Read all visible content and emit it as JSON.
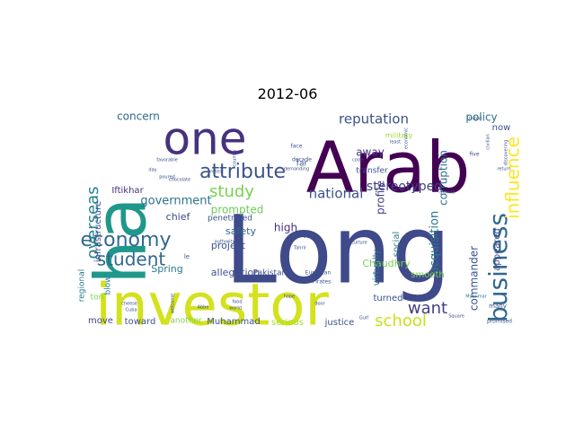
{
  "chart_data": {
    "type": "wordcloud",
    "title": "2012-06",
    "background": "#ffffff",
    "colormap": "viridis",
    "words": [
      {
        "text": "Long",
        "weight": 100,
        "color": "#3f4a8a",
        "rotated": false
      },
      {
        "text": "investor",
        "weight": 66,
        "color": "#d3e21b",
        "rotated": false
      },
      {
        "text": "Arab",
        "weight": 66,
        "color": "#440154",
        "rotated": false
      },
      {
        "text": "ha",
        "weight": 62,
        "color": "#1f988b",
        "rotated": true
      },
      {
        "text": "one",
        "weight": 50,
        "color": "#46327e",
        "rotated": false
      },
      {
        "text": "business",
        "weight": 24,
        "color": "#31688e",
        "rotated": true
      },
      {
        "text": "economy",
        "weight": 22,
        "color": "#31688e",
        "rotated": false
      },
      {
        "text": "attribute",
        "weight": 19,
        "color": "#3b528b",
        "rotated": false
      },
      {
        "text": "influence",
        "weight": 17,
        "color": "#fde725",
        "rotated": true
      },
      {
        "text": "student",
        "weight": 17,
        "color": "#31688e",
        "rotated": false
      },
      {
        "text": "overseas",
        "weight": 17,
        "color": "#26828e",
        "rotated": true
      },
      {
        "text": "school",
        "weight": 16,
        "color": "#c8e020",
        "rotated": false
      },
      {
        "text": "want",
        "weight": 15,
        "color": "#433e85",
        "rotated": false
      },
      {
        "text": "study",
        "weight": 14,
        "color": "#7ad151",
        "rotated": false
      },
      {
        "text": "reputation",
        "weight": 13,
        "color": "#3b528b",
        "rotated": false
      },
      {
        "text": "national",
        "weight": 12,
        "color": "#3b528b",
        "rotated": false
      },
      {
        "text": "stereotyped",
        "weight": 11,
        "color": "#424086",
        "rotated": false
      },
      {
        "text": "government",
        "weight": 10,
        "color": "#2c728e",
        "rotated": false
      },
      {
        "text": "acquisition",
        "weight": 10,
        "color": "#2a788e",
        "rotated": true
      },
      {
        "text": "concern",
        "weight": 9,
        "color": "#31688e",
        "rotated": false
      },
      {
        "text": "policy",
        "weight": 9,
        "color": "#2d708e",
        "rotated": false
      },
      {
        "text": "commander",
        "weight": 9,
        "color": "#3b528b",
        "rotated": true
      },
      {
        "text": "profile",
        "weight": 9,
        "color": "#433e85",
        "rotated": true
      },
      {
        "text": "prompted",
        "weight": 9,
        "color": "#6ccd5a",
        "rotated": false
      },
      {
        "text": "high",
        "weight": 9,
        "color": "#46327e",
        "rotated": false
      },
      {
        "text": "away",
        "weight": 9,
        "color": "#46337f",
        "rotated": false
      },
      {
        "text": "corruption",
        "weight": 8,
        "color": "#2e6e8e",
        "rotated": true
      },
      {
        "text": "safety",
        "weight": 8,
        "color": "#31688e",
        "rotated": false
      },
      {
        "text": "project",
        "weight": 8,
        "color": "#3b528b",
        "rotated": false
      },
      {
        "text": "Chaudhry",
        "weight": 8,
        "color": "#7ad151",
        "rotated": false
      },
      {
        "text": "Spring",
        "weight": 8,
        "color": "#2a788e",
        "rotated": false
      },
      {
        "text": "allegation",
        "weight": 8,
        "color": "#3b528b",
        "rotated": false
      },
      {
        "text": "chief",
        "weight": 8,
        "color": "#3e4989",
        "rotated": false
      },
      {
        "text": "Iftikhar",
        "weight": 7,
        "color": "#46327e",
        "rotated": false
      },
      {
        "text": "infrastructure",
        "weight": 7,
        "color": "#3b528b",
        "rotated": true
      },
      {
        "text": "virtually",
        "weight": 7,
        "color": "#2a788e",
        "rotated": true
      },
      {
        "text": "social",
        "weight": 7,
        "color": "#2a788e",
        "rotated": true
      },
      {
        "text": "appeared",
        "weight": 7,
        "color": "#3e4989",
        "rotated": true
      },
      {
        "text": "now",
        "weight": 7,
        "color": "#3b528b",
        "rotated": false
      },
      {
        "text": "move",
        "weight": 7,
        "color": "#3e4989",
        "rotated": false
      },
      {
        "text": "toward",
        "weight": 7,
        "color": "#3b528b",
        "rotated": false
      },
      {
        "text": "Muhammad",
        "weight": 7,
        "color": "#3b528b",
        "rotated": false
      },
      {
        "text": "serious",
        "weight": 7,
        "color": "#a5db36",
        "rotated": false
      },
      {
        "text": "justice",
        "weight": 7,
        "color": "#3b528b",
        "rotated": false
      },
      {
        "text": "turned",
        "weight": 7,
        "color": "#3b528b",
        "rotated": false
      },
      {
        "text": "smooth",
        "weight": 7,
        "color": "#7ad151",
        "rotated": false
      },
      {
        "text": "regional",
        "weight": 7,
        "color": "#2a788e",
        "rotated": true
      },
      {
        "text": "blow",
        "weight": 6,
        "color": "#2a788e",
        "rotated": true
      },
      {
        "text": "penetrated",
        "weight": 6,
        "color": "#3b528b",
        "rotated": false
      },
      {
        "text": "Pakistanis",
        "weight": 6,
        "color": "#3b528b",
        "rotated": false
      },
      {
        "text": "far",
        "weight": 6,
        "color": "#3b528b",
        "rotated": false
      },
      {
        "text": "transfer",
        "weight": 6,
        "color": "#3b528b",
        "rotated": false
      },
      {
        "text": "ton",
        "weight": 6,
        "color": "#7ad151",
        "rotated": false
      },
      {
        "text": "another",
        "weight": 6,
        "color": "#7ad151",
        "rotated": false
      },
      {
        "text": "military",
        "weight": 5,
        "color": "#a5db36",
        "rotated": false
      },
      {
        "text": "struggle",
        "weight": 4,
        "color": "#3b528b",
        "rotated": false
      },
      {
        "text": "le",
        "weight": 4,
        "color": "#3b528b",
        "rotated": false
      },
      {
        "text": "decade",
        "weight": 4,
        "color": "#3b528b",
        "rotated": false
      },
      {
        "text": "face",
        "weight": 4,
        "color": "#3b528b",
        "rotated": false
      },
      {
        "text": "European",
        "weight": 4,
        "color": "#3b528b",
        "rotated": false
      },
      {
        "text": "Pirates",
        "weight": 4,
        "color": "#3b528b",
        "rotated": false
      },
      {
        "text": "Myanmar",
        "weight": 4,
        "color": "#2a788e",
        "rotated": false
      },
      {
        "text": "many",
        "weight": 4,
        "color": "#3b528b",
        "rotated": false
      },
      {
        "text": "promised",
        "weight": 3,
        "color": "#3b528b",
        "rotated": false
      },
      {
        "text": "five",
        "weight": 4,
        "color": "#3b528b",
        "rotated": false
      },
      {
        "text": "civilian",
        "weight": 3,
        "color": "#3b528b",
        "rotated": true
      },
      {
        "text": "United",
        "weight": 3,
        "color": "#3b528b",
        "rotated": false
      },
      {
        "text": "Tahrir",
        "weight": 3,
        "color": "#3b528b",
        "rotated": false
      },
      {
        "text": "Abbe",
        "weight": 3,
        "color": "#3b528b",
        "rotated": false
      },
      {
        "text": "Square",
        "weight": 3,
        "color": "#3b528b",
        "rotated": false
      },
      {
        "text": "Gulf",
        "weight": 3,
        "color": "#3b528b",
        "rotated": false
      },
      {
        "text": "world",
        "weight": 3,
        "color": "#3b528b",
        "rotated": false
      },
      {
        "text": "hope",
        "weight": 3,
        "color": "#3b528b",
        "rotated": false
      },
      {
        "text": "Cuba",
        "weight": 3,
        "color": "#3b528b",
        "rotated": false
      },
      {
        "text": "cheese",
        "weight": 3,
        "color": "#3b528b",
        "rotated": false
      },
      {
        "text": "day",
        "weight": 3,
        "color": "#3b528b",
        "rotated": false
      },
      {
        "text": "favorable",
        "weight": 3,
        "color": "#3b528b",
        "rotated": false
      },
      {
        "text": "code",
        "weight": 3,
        "color": "#3b528b",
        "rotated": false
      },
      {
        "text": "protest",
        "weight": 3,
        "color": "#3b528b",
        "rotated": false
      },
      {
        "text": "demanding",
        "weight": 3,
        "color": "#3b528b",
        "rotated": false
      },
      {
        "text": "authority",
        "weight": 3,
        "color": "#3b528b",
        "rotated": false
      },
      {
        "text": "poured",
        "weight": 3,
        "color": "#3b528b",
        "rotated": false
      },
      {
        "text": "chocolate",
        "weight": 3,
        "color": "#3b528b",
        "rotated": false
      },
      {
        "text": "food",
        "weight": 3,
        "color": "#3b528b",
        "rotated": false
      },
      {
        "text": "culture",
        "weight": 3,
        "color": "#3b528b",
        "rotated": false
      },
      {
        "text": "growth",
        "weight": 3,
        "color": "#3b528b",
        "rotated": false
      },
      {
        "text": "return",
        "weight": 3,
        "color": "#3b528b",
        "rotated": false
      },
      {
        "text": "least",
        "weight": 3,
        "color": "#3b528b",
        "rotated": false
      },
      {
        "text": "economic",
        "weight": 3,
        "color": "#3b528b",
        "rotated": true
      },
      {
        "text": "discovering",
        "weight": 3,
        "color": "#3b528b",
        "rotated": true
      },
      {
        "text": "country",
        "weight": 3,
        "color": "#3b528b",
        "rotated": true
      },
      {
        "text": "welcome",
        "weight": 3,
        "color": "#3b528b",
        "rotated": true
      },
      {
        "text": "door",
        "weight": 3,
        "color": "#3b528b",
        "rotated": false
      }
    ]
  }
}
